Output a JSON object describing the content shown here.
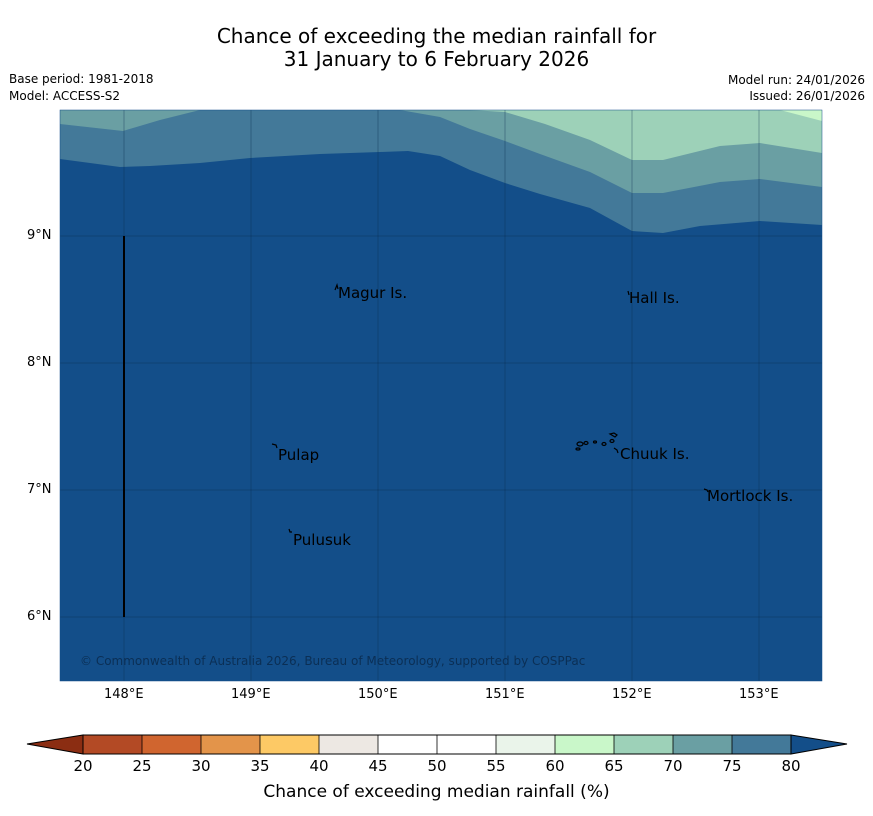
{
  "title": {
    "line1": "Chance of exceeding the median rainfall for",
    "line2": "31 January to 6 February 2026"
  },
  "meta": {
    "base_period": "Base period: 1981-2018",
    "model": "Model: ACCESS-S2",
    "model_run": "Model run: 24/01/2026",
    "issued": "Issued: 26/01/2026"
  },
  "map": {
    "lat_labels": [
      "9°N",
      "8°N",
      "7°N",
      "6°N"
    ],
    "lon_labels": [
      "148°E",
      "149°E",
      "150°E",
      "151°E",
      "152°E",
      "153°E"
    ],
    "places": [
      "Magur Is.",
      "Hall Is.",
      "Pulap",
      "Chuuk Is.",
      "Mortlock Is.",
      "Pulusuk"
    ],
    "copyright": "© Commonwealth of Australia 2026, Bureau of Meteorology, supported by COSPPac"
  },
  "colorbar": {
    "title": "Chance of exceeding median rainfall (%)",
    "tick_labels": [
      "20",
      "25",
      "30",
      "35",
      "40",
      "45",
      "50",
      "55",
      "60",
      "65",
      "70",
      "75",
      "80"
    ],
    "colors": {
      "under": "#8b2d12",
      "c20_25": "#b34a25",
      "c25_30": "#d0652f",
      "c30_35": "#e3944a",
      "c35_40": "#fdc965",
      "c40_45": "#ede8e3",
      "c45_50": "#ffffff",
      "c50_55": "#ffffff",
      "c55_60": "#eaf4ea",
      "c60_65": "#c9f7c9",
      "c65_70": "#9dd1b8",
      "c70_75": "#6a9fa3",
      "c75_80": "#437999",
      "over": "#134e89"
    }
  }
}
